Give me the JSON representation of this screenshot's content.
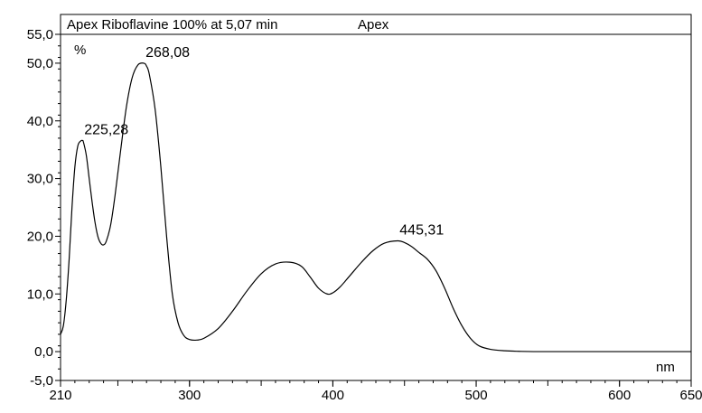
{
  "chart_data": {
    "type": "line",
    "title": "Apex Riboflavine 100% at 5,07 min",
    "title_suffix": "Apex",
    "ylabel": "%",
    "xlabel": "nm",
    "xlim": [
      210,
      650
    ],
    "ylim": [
      -5,
      55
    ],
    "grid": false,
    "x_ticks": [
      {
        "value": 210,
        "label": "210"
      },
      {
        "value": 300,
        "label": "300"
      },
      {
        "value": 400,
        "label": "400"
      },
      {
        "value": 500,
        "label": "500"
      },
      {
        "value": 600,
        "label": "600"
      },
      {
        "value": 650,
        "label": "650"
      }
    ],
    "y_ticks": [
      {
        "value": -5,
        "label": "-5,0"
      },
      {
        "value": 0,
        "label": "0,0"
      },
      {
        "value": 10,
        "label": "10,0"
      },
      {
        "value": 20,
        "label": "20,0"
      },
      {
        "value": 30,
        "label": "30,0"
      },
      {
        "value": 40,
        "label": "40,0"
      },
      {
        "value": 50,
        "label": "50,0"
      },
      {
        "value": 55,
        "label": "55,0"
      }
    ],
    "series": [
      {
        "color": "#000000",
        "points": [
          [
            210,
            3.0
          ],
          [
            212,
            4.5
          ],
          [
            214,
            9.0
          ],
          [
            216,
            16.0
          ],
          [
            218,
            25.0
          ],
          [
            220,
            32.0
          ],
          [
            222,
            35.6
          ],
          [
            224,
            36.5
          ],
          [
            225.28,
            36.6
          ],
          [
            226,
            36.3
          ],
          [
            228,
            34.0
          ],
          [
            230,
            30.0
          ],
          [
            232,
            26.0
          ],
          [
            234,
            22.5
          ],
          [
            236,
            20.0
          ],
          [
            238,
            18.8
          ],
          [
            240,
            18.5
          ],
          [
            242,
            19.2
          ],
          [
            245,
            22.0
          ],
          [
            248,
            27.0
          ],
          [
            252,
            35.0
          ],
          [
            256,
            42.5
          ],
          [
            260,
            47.5
          ],
          [
            264,
            49.7
          ],
          [
            268.08,
            50.0
          ],
          [
            270,
            49.5
          ],
          [
            272,
            48.0
          ],
          [
            276,
            42.0
          ],
          [
            280,
            32.0
          ],
          [
            284,
            20.0
          ],
          [
            288,
            10.0
          ],
          [
            292,
            5.0
          ],
          [
            296,
            2.8
          ],
          [
            300,
            2.1
          ],
          [
            305,
            2.0
          ],
          [
            310,
            2.3
          ],
          [
            320,
            4.0
          ],
          [
            330,
            7.0
          ],
          [
            340,
            10.5
          ],
          [
            350,
            13.5
          ],
          [
            360,
            15.2
          ],
          [
            370,
            15.5
          ],
          [
            378,
            14.8
          ],
          [
            384,
            13.0
          ],
          [
            390,
            11.0
          ],
          [
            396,
            10.0
          ],
          [
            400,
            10.2
          ],
          [
            405,
            11.2
          ],
          [
            412,
            13.2
          ],
          [
            420,
            15.5
          ],
          [
            428,
            17.5
          ],
          [
            436,
            18.8
          ],
          [
            445.31,
            19.2
          ],
          [
            450,
            18.9
          ],
          [
            455,
            18.2
          ],
          [
            460,
            17.2
          ],
          [
            466,
            16.0
          ],
          [
            472,
            14.0
          ],
          [
            478,
            11.0
          ],
          [
            484,
            7.5
          ],
          [
            490,
            4.5
          ],
          [
            496,
            2.3
          ],
          [
            502,
            1.0
          ],
          [
            510,
            0.4
          ],
          [
            520,
            0.15
          ],
          [
            530,
            0.05
          ],
          [
            540,
            0.0
          ],
          [
            560,
            0.0
          ],
          [
            600,
            0.0
          ],
          [
            650,
            0.0
          ]
        ]
      }
    ],
    "annotations": [
      {
        "x": 225.28,
        "y": 36.6,
        "label": "225,28"
      },
      {
        "x": 268.08,
        "y": 50.0,
        "label": "268,08"
      },
      {
        "x": 445.31,
        "y": 19.2,
        "label": "445,31"
      }
    ]
  }
}
